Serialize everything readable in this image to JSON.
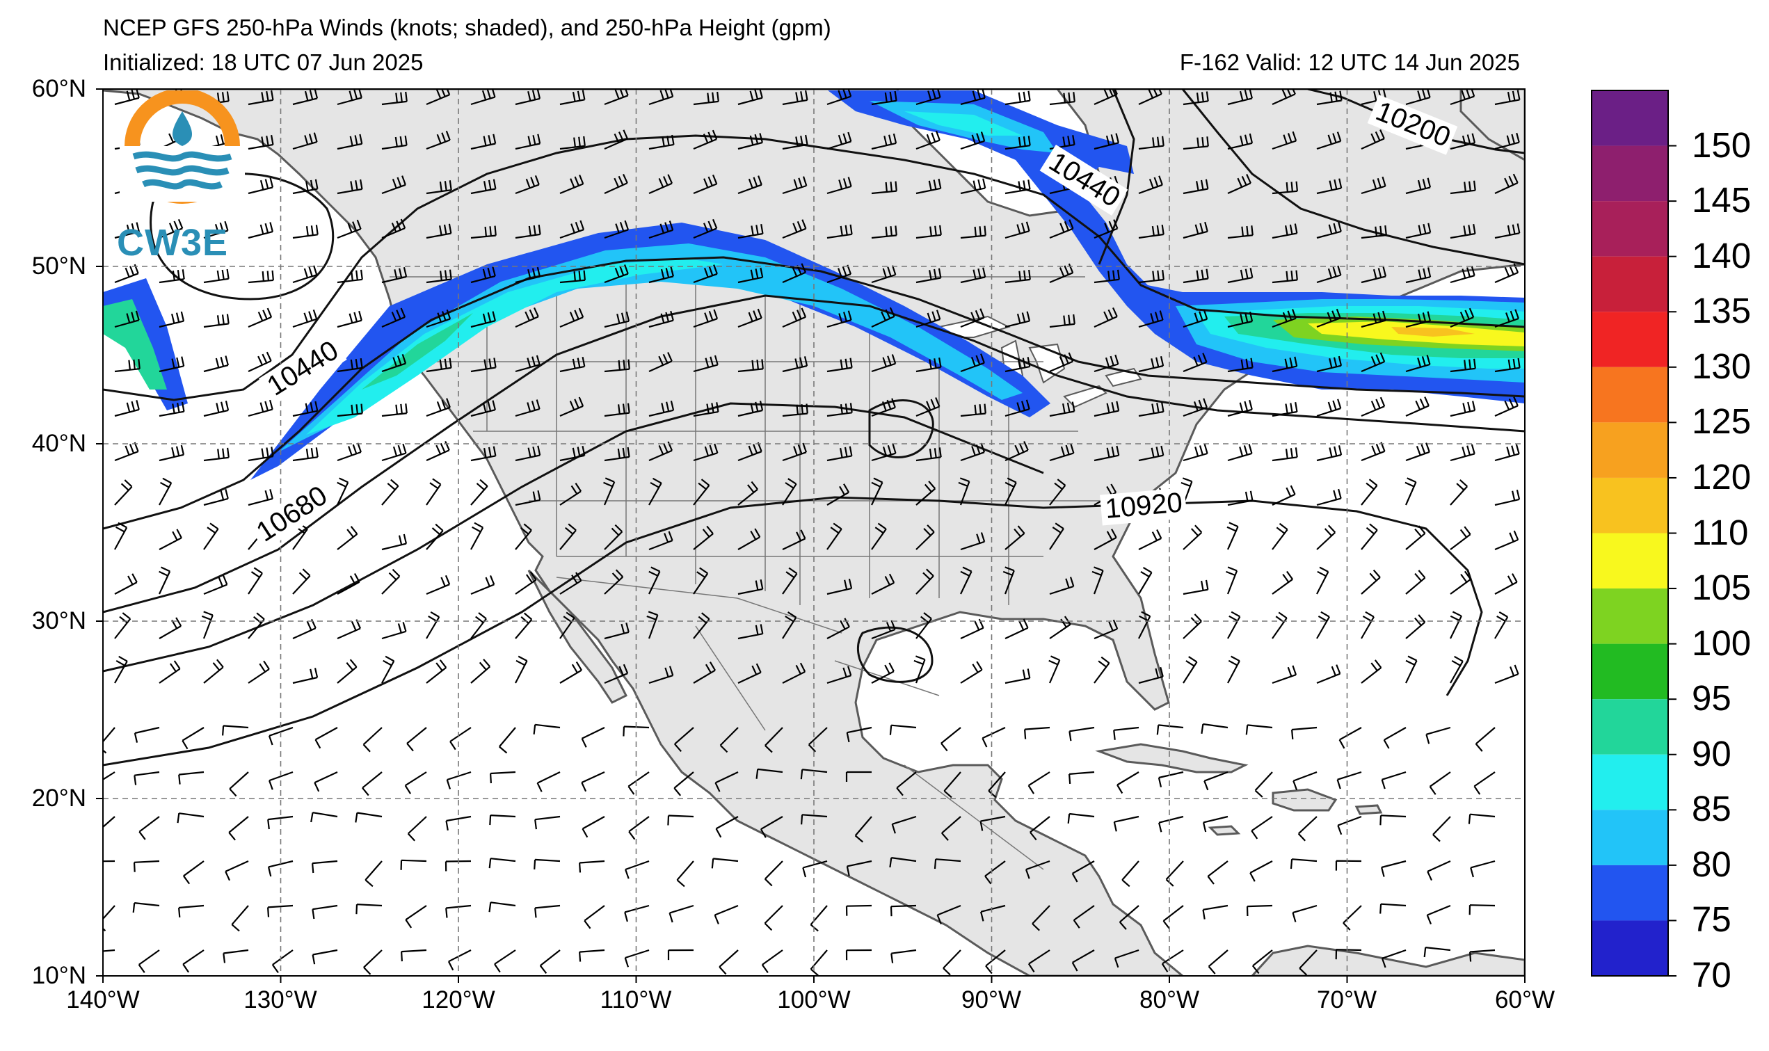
{
  "header": {
    "title": "NCEP GFS 250-hPa Winds (knots; shaded), and 250-hPa Height (gpm)",
    "initialized": "Initialized: 18 UTC 07 Jun 2025",
    "valid": "F-162  Valid: 12 UTC 14 Jun 2025"
  },
  "logo": {
    "text": "CW3E"
  },
  "axes": {
    "lat_labels": [
      "60°N",
      "50°N",
      "40°N",
      "30°N",
      "20°N",
      "10°N"
    ],
    "lon_labels": [
      "140°W",
      "130°W",
      "120°W",
      "110°W",
      "100°W",
      "90°W",
      "80°W",
      "70°W",
      "60°W"
    ]
  },
  "contour_labels": [
    {
      "text": "10440",
      "where": "northeast-canada"
    },
    {
      "text": "10200",
      "where": "labrador"
    },
    {
      "text": "10440",
      "where": "pacific-northwest-offshore"
    },
    {
      "text": "10680",
      "where": "california-offshore"
    },
    {
      "text": "10920",
      "where": "mid-atlantic"
    }
  ],
  "colorbar": {
    "labels": [
      "150",
      "145",
      "140",
      "135",
      "130",
      "125",
      "120",
      "110",
      "105",
      "100",
      "95",
      "90",
      "85",
      "80",
      "75",
      "70"
    ],
    "colors": [
      "#6b1f86",
      "#8e1f6e",
      "#a8205a",
      "#c8203a",
      "#f02424",
      "#f7751f",
      "#f7a11f",
      "#f8c21f",
      "#f8f81e",
      "#7ed321",
      "#22bb22",
      "#22d69a",
      "#22eeee",
      "#22c4f8",
      "#2255f0",
      "#2222cc"
    ]
  },
  "palette": {
    "land": "#e5e5e5",
    "ocean": "#ffffff",
    "jet_core": "#22eeee",
    "jet_edge": "#2255f0"
  }
}
